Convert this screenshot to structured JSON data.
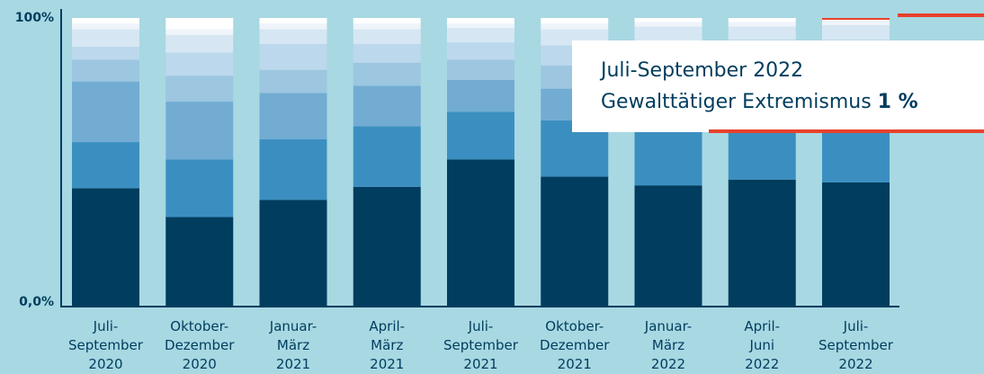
{
  "chart_data": {
    "type": "stacked_bar",
    "categories": [
      "Juli-\nSeptember\n2020",
      "Oktober-\nDezember\n2020",
      "Januar-\nMärz\n2021",
      "April-\nMärz\n2021",
      "Juli-\nSeptember\n2021",
      "Oktober-\nDezember\n2021",
      "Januar-\nMärz\n2022",
      "April-\nJuni\n2022",
      "Juli-\nSeptember\n2022"
    ],
    "series": [
      {
        "color": "#003d5e",
        "values": [
          41,
          31,
          37,
          41.5,
          51,
          45,
          42,
          44,
          43
        ]
      },
      {
        "color": "#3b8fc0",
        "values": [
          16,
          20,
          21,
          21,
          16.5,
          19.5,
          20,
          19,
          20
        ]
      },
      {
        "color": "#72acd3",
        "values": [
          21,
          20,
          16,
          14,
          11,
          11,
          14,
          14,
          14
        ]
      },
      {
        "color": "#9dc6e0",
        "values": [
          7.5,
          9,
          8,
          8,
          7,
          8,
          9,
          9,
          9
        ]
      },
      {
        "color": "#bcd8ec",
        "values": [
          4.5,
          8,
          9,
          6.5,
          6,
          7,
          7,
          6.5,
          6.5
        ]
      },
      {
        "color": "#d6e7f3",
        "values": [
          6,
          6,
          5,
          5,
          5,
          5.5,
          5,
          4.5,
          5
        ]
      },
      {
        "color": "#eef4fa",
        "values": [
          2,
          2,
          2,
          2,
          1.5,
          2,
          1.5,
          1.5,
          1.5
        ]
      },
      {
        "color": "#ffffff",
        "values": [
          2,
          4,
          2,
          2,
          2,
          2,
          1.5,
          1.5,
          1
        ]
      }
    ],
    "ylim": [
      0,
      100
    ],
    "yticks": [
      {
        "value": 0,
        "label": "0,0%"
      },
      {
        "value": 100,
        "label": "100%"
      }
    ],
    "highlight": {
      "series": 7,
      "category": 8,
      "color": "#e8412c"
    },
    "annotation": {
      "title": "Juli-September 2022",
      "label": "Gewalttätiger Extremismus",
      "value_label": "1 %"
    }
  }
}
